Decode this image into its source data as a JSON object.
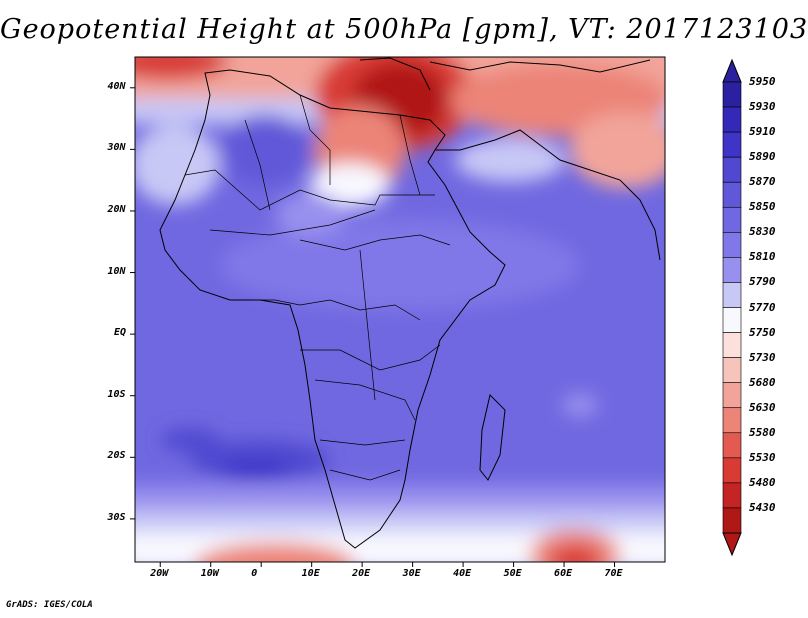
{
  "title": "Geopotential Height at 500hPa [gpm], VT: 2017123103",
  "footer": "GrADS: IGES/COLA",
  "map": {
    "lon_range": [
      -25,
      80
    ],
    "lat_range": [
      -37,
      45
    ],
    "lon_ticks": [
      "20W",
      "10W",
      "0",
      "10E",
      "20E",
      "30E",
      "40E",
      "50E",
      "60E",
      "70E"
    ],
    "lat_ticks": [
      "40N",
      "30N",
      "20N",
      "10N",
      "EQ",
      "10S",
      "20S",
      "30S"
    ]
  },
  "colorbar": {
    "levels": [
      "5950",
      "5930",
      "5910",
      "5890",
      "5870",
      "5850",
      "5830",
      "5810",
      "5790",
      "5770",
      "5750",
      "5730",
      "5680",
      "5630",
      "5580",
      "5530",
      "5480",
      "5430"
    ],
    "colors": [
      "#2a20a0",
      "#3428b8",
      "#3e34c8",
      "#5048d0",
      "#6058d8",
      "#7068e0",
      "#8078e8",
      "#9890ee",
      "#c8c8f6",
      "#f8f8ff",
      "#fbe0dc",
      "#f7c4bc",
      "#f2a49a",
      "#ec8478",
      "#e25a50",
      "#d83a34",
      "#c42424",
      "#b01818"
    ]
  }
}
